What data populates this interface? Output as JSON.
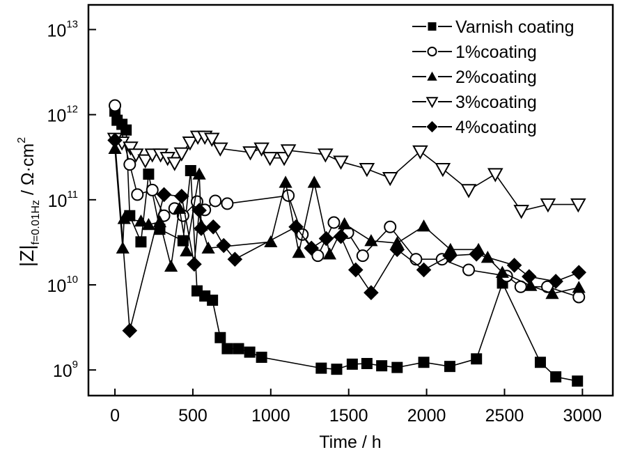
{
  "chart_data": {
    "type": "line",
    "title": "",
    "xlabel": "Time / h",
    "ylabel": "|Z|f=0.01Hz / Ω·cm2",
    "ylabel_parts": {
      "main": "|Z|",
      "subscript": "f=0.01Hz",
      "unit": " / Ω·cm",
      "superscript": "2"
    },
    "xscale": "linear",
    "yscale": "log",
    "xlim": [
      -170,
      3195
    ],
    "ylim": [
      500000000.0,
      19500000000000.0
    ],
    "xticks": [
      0,
      500,
      1000,
      1500,
      2000,
      2500,
      3000
    ],
    "xtick_labels": [
      "0",
      "500",
      "1000",
      "1500",
      "2000",
      "2500",
      "3000"
    ],
    "yticks": [
      1000000000.0,
      10000000000.0,
      100000000000.0,
      1000000000000.0,
      10000000000000.0
    ],
    "ytick_labels": [
      {
        "base": "10",
        "exp": "9"
      },
      {
        "base": "10",
        "exp": "10"
      },
      {
        "base": "10",
        "exp": "11"
      },
      {
        "base": "10",
        "exp": "12"
      },
      {
        "base": "10",
        "exp": "13"
      }
    ],
    "grid": false,
    "legend_position": "top-right",
    "series": [
      {
        "name": "Varnish coating",
        "marker": "square-filled",
        "x": [
          0,
          14,
          45,
          72,
          95,
          167,
          216,
          288,
          437,
          486,
          527,
          577,
          626,
          676,
          721,
          793,
          865,
          941,
          1324,
          1423,
          1523,
          1617,
          1712,
          1811,
          1982,
          2149,
          2320,
          2487,
          2730,
          2829,
          2968
        ],
        "y": [
          1100000000000.0,
          860000000000.0,
          770000000000.0,
          660000000000.0,
          65000000000.0,
          32000000000.0,
          200000000000.0,
          45000000000.0,
          33000000000.0,
          220000000000.0,
          8500000000.0,
          7400000000.0,
          6600000000.0,
          2400000000.0,
          1780000000.0,
          1780000000.0,
          1620000000.0,
          1410000000.0,
          1050000000.0,
          1020000000.0,
          1170000000.0,
          1190000000.0,
          1120000000.0,
          1070000000.0,
          1230000000.0,
          1100000000.0,
          1350000000.0,
          10500000000.0,
          1230000000.0,
          830000000.0,
          740000000.0
        ]
      },
      {
        "name": "1%coating",
        "marker": "circle-open",
        "x": [
          0,
          95,
          144,
          240,
          315,
          383,
          437,
          527,
          577,
          644,
          721,
          1113,
          1203,
          1302,
          1405,
          1495,
          1590,
          1766,
          1932,
          2099,
          2270,
          2514,
          2604,
          2775,
          2977
        ],
        "y": [
          1280000000000.0,
          260000000000.0,
          115000000000.0,
          130000000000.0,
          65000000000.0,
          79000000000.0,
          65000000000.0,
          95000000000.0,
          76000000000.0,
          97000000000.0,
          90000000000.0,
          112000000000.0,
          39000000000.0,
          22000000000.0,
          54000000000.0,
          41000000000.0,
          22000000000.0,
          48000000000.0,
          20000000000.0,
          20000000000.0,
          15000000000.0,
          12700000000.0,
          9500000000.0,
          9500000000.0,
          7200000000.0
        ]
      },
      {
        "name": "2%coating",
        "marker": "triangle-up-filled",
        "x": [
          0,
          50,
          59,
          167,
          216,
          288,
          360,
          414,
          459,
          541,
          554,
          599,
          1000,
          1095,
          1180,
          1279,
          1378,
          1473,
          1644,
          1811,
          1982,
          2153,
          2333,
          2392,
          2486,
          2667,
          2806,
          2977
        ],
        "y": [
          400000000000.0,
          27000000000.0,
          60000000000.0,
          56000000000.0,
          51000000000.0,
          55000000000.0,
          16500000000.0,
          79000000000.0,
          25000000000.0,
          200000000000.0,
          50000000000.0,
          27000000000.0,
          32000000000.0,
          160000000000.0,
          24000000000.0,
          160000000000.0,
          23000000000.0,
          52000000000.0,
          33000000000.0,
          31000000000.0,
          49000000000.0,
          26000000000.0,
          26000000000.0,
          21000000000.0,
          14000000000.0,
          9800000000.0,
          7900000000.0,
          9300000000.0
        ]
      },
      {
        "name": "3%coating",
        "marker": "triangle-down-open",
        "x": [
          0,
          45,
          100,
          135,
          195,
          240,
          293,
          338,
          383,
          428,
          482,
          532,
          577,
          622,
          676,
          869,
          941,
          995,
          1086,
          1113,
          1351,
          1450,
          1617,
          1766,
          1959,
          2104,
          2270,
          2441,
          2608,
          2779,
          2973
        ],
        "y": [
          520000000000.0,
          470000000000.0,
          410000000000.0,
          340000000000.0,
          290000000000.0,
          340000000000.0,
          340000000000.0,
          310000000000.0,
          270000000000.0,
          350000000000.0,
          470000000000.0,
          550000000000.0,
          550000000000.0,
          520000000000.0,
          400000000000.0,
          360000000000.0,
          400000000000.0,
          310000000000.0,
          310000000000.0,
          380000000000.0,
          340000000000.0,
          280000000000.0,
          230000000000.0,
          180000000000.0,
          370000000000.0,
          230000000000.0,
          130000000000.0,
          200000000000.0,
          74000000000.0,
          88000000000.0,
          88000000000.0
        ]
      },
      {
        "name": "4%coating",
        "marker": "diamond-filled",
        "x": [
          0,
          95,
          315,
          428,
          509,
          541,
          554,
          631,
          698,
          770,
          1162,
          1261,
          1356,
          1450,
          1545,
          1644,
          1811,
          1982,
          2149,
          2320,
          2563,
          2658,
          2829,
          2977
        ],
        "y": [
          500000000000.0,
          2900000000.0,
          115000000000.0,
          110000000000.0,
          17500000000.0,
          75000000000.0,
          46000000000.0,
          48000000000.0,
          29000000000.0,
          20000000000.0,
          48000000000.0,
          27000000000.0,
          35000000000.0,
          37000000000.0,
          15000000000.0,
          8100000000.0,
          26000000000.0,
          15000000000.0,
          22000000000.0,
          23000000000.0,
          17000000000.0,
          12500000000.0,
          11000000000.0,
          14000000000.0
        ]
      }
    ]
  }
}
